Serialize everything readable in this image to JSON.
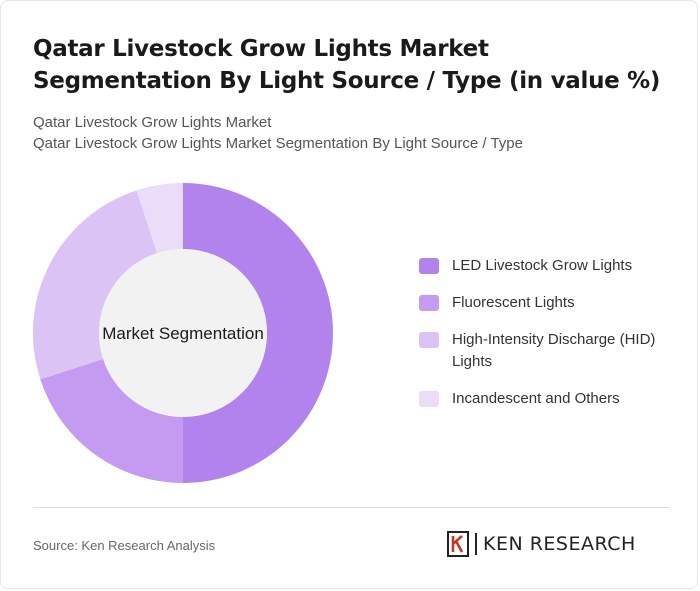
{
  "header": {
    "title": "Qatar Livestock Grow Lights Market Segmentation By Light Source / Type (in value %)",
    "subtitle_1": "Qatar Livestock Grow Lights Market",
    "subtitle_2": "Qatar Livestock Grow Lights Market Segmentation By Light Source / Type"
  },
  "chart_data": {
    "type": "pie",
    "center_label": "Market Segmentation",
    "categories": [
      "LED Livestock Grow Lights",
      "Fluorescent Lights",
      "High-Intensity Discharge (HID) Lights",
      "Incandescent and Others"
    ],
    "values": [
      50,
      20,
      25,
      5
    ],
    "colors": [
      "#b283ec",
      "#c49bf0",
      "#dbc3f6",
      "#ebdcfa"
    ],
    "legend": "right"
  },
  "footer": {
    "source": "Source: Ken Research Analysis",
    "logo_text": "KEN RESEARCH"
  }
}
